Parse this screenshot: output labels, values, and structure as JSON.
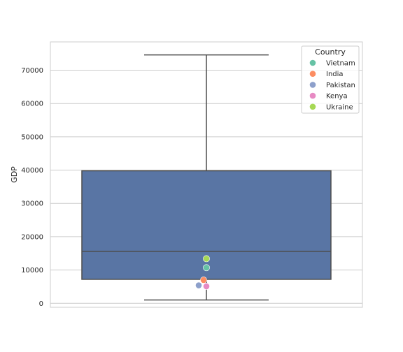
{
  "chart_data": {
    "type": "box",
    "ylabel": "GDP",
    "xlabel": "",
    "ylim": [
      -1200,
      78500
    ],
    "yticks": [
      0,
      10000,
      20000,
      30000,
      40000,
      50000,
      60000,
      70000
    ],
    "grid": "horizontal",
    "box": {
      "whisker_low": 1000,
      "q1": 7200,
      "median": 15600,
      "q3": 39800,
      "whisker_high": 74600,
      "color": "#5975a4"
    },
    "legend": {
      "title": "Country",
      "placement": "top-right"
    },
    "series": [
      {
        "name": "Vietnam",
        "value": 10700,
        "color": "#66c2a5"
      },
      {
        "name": "India",
        "value": 7000,
        "color": "#fc8d62"
      },
      {
        "name": "Pakistan",
        "value": 5400,
        "color": "#8da0cb"
      },
      {
        "name": "Kenya",
        "value": 5100,
        "color": "#e78ac3"
      },
      {
        "name": "Ukraine",
        "value": 13400,
        "color": "#a6d854"
      }
    ]
  }
}
